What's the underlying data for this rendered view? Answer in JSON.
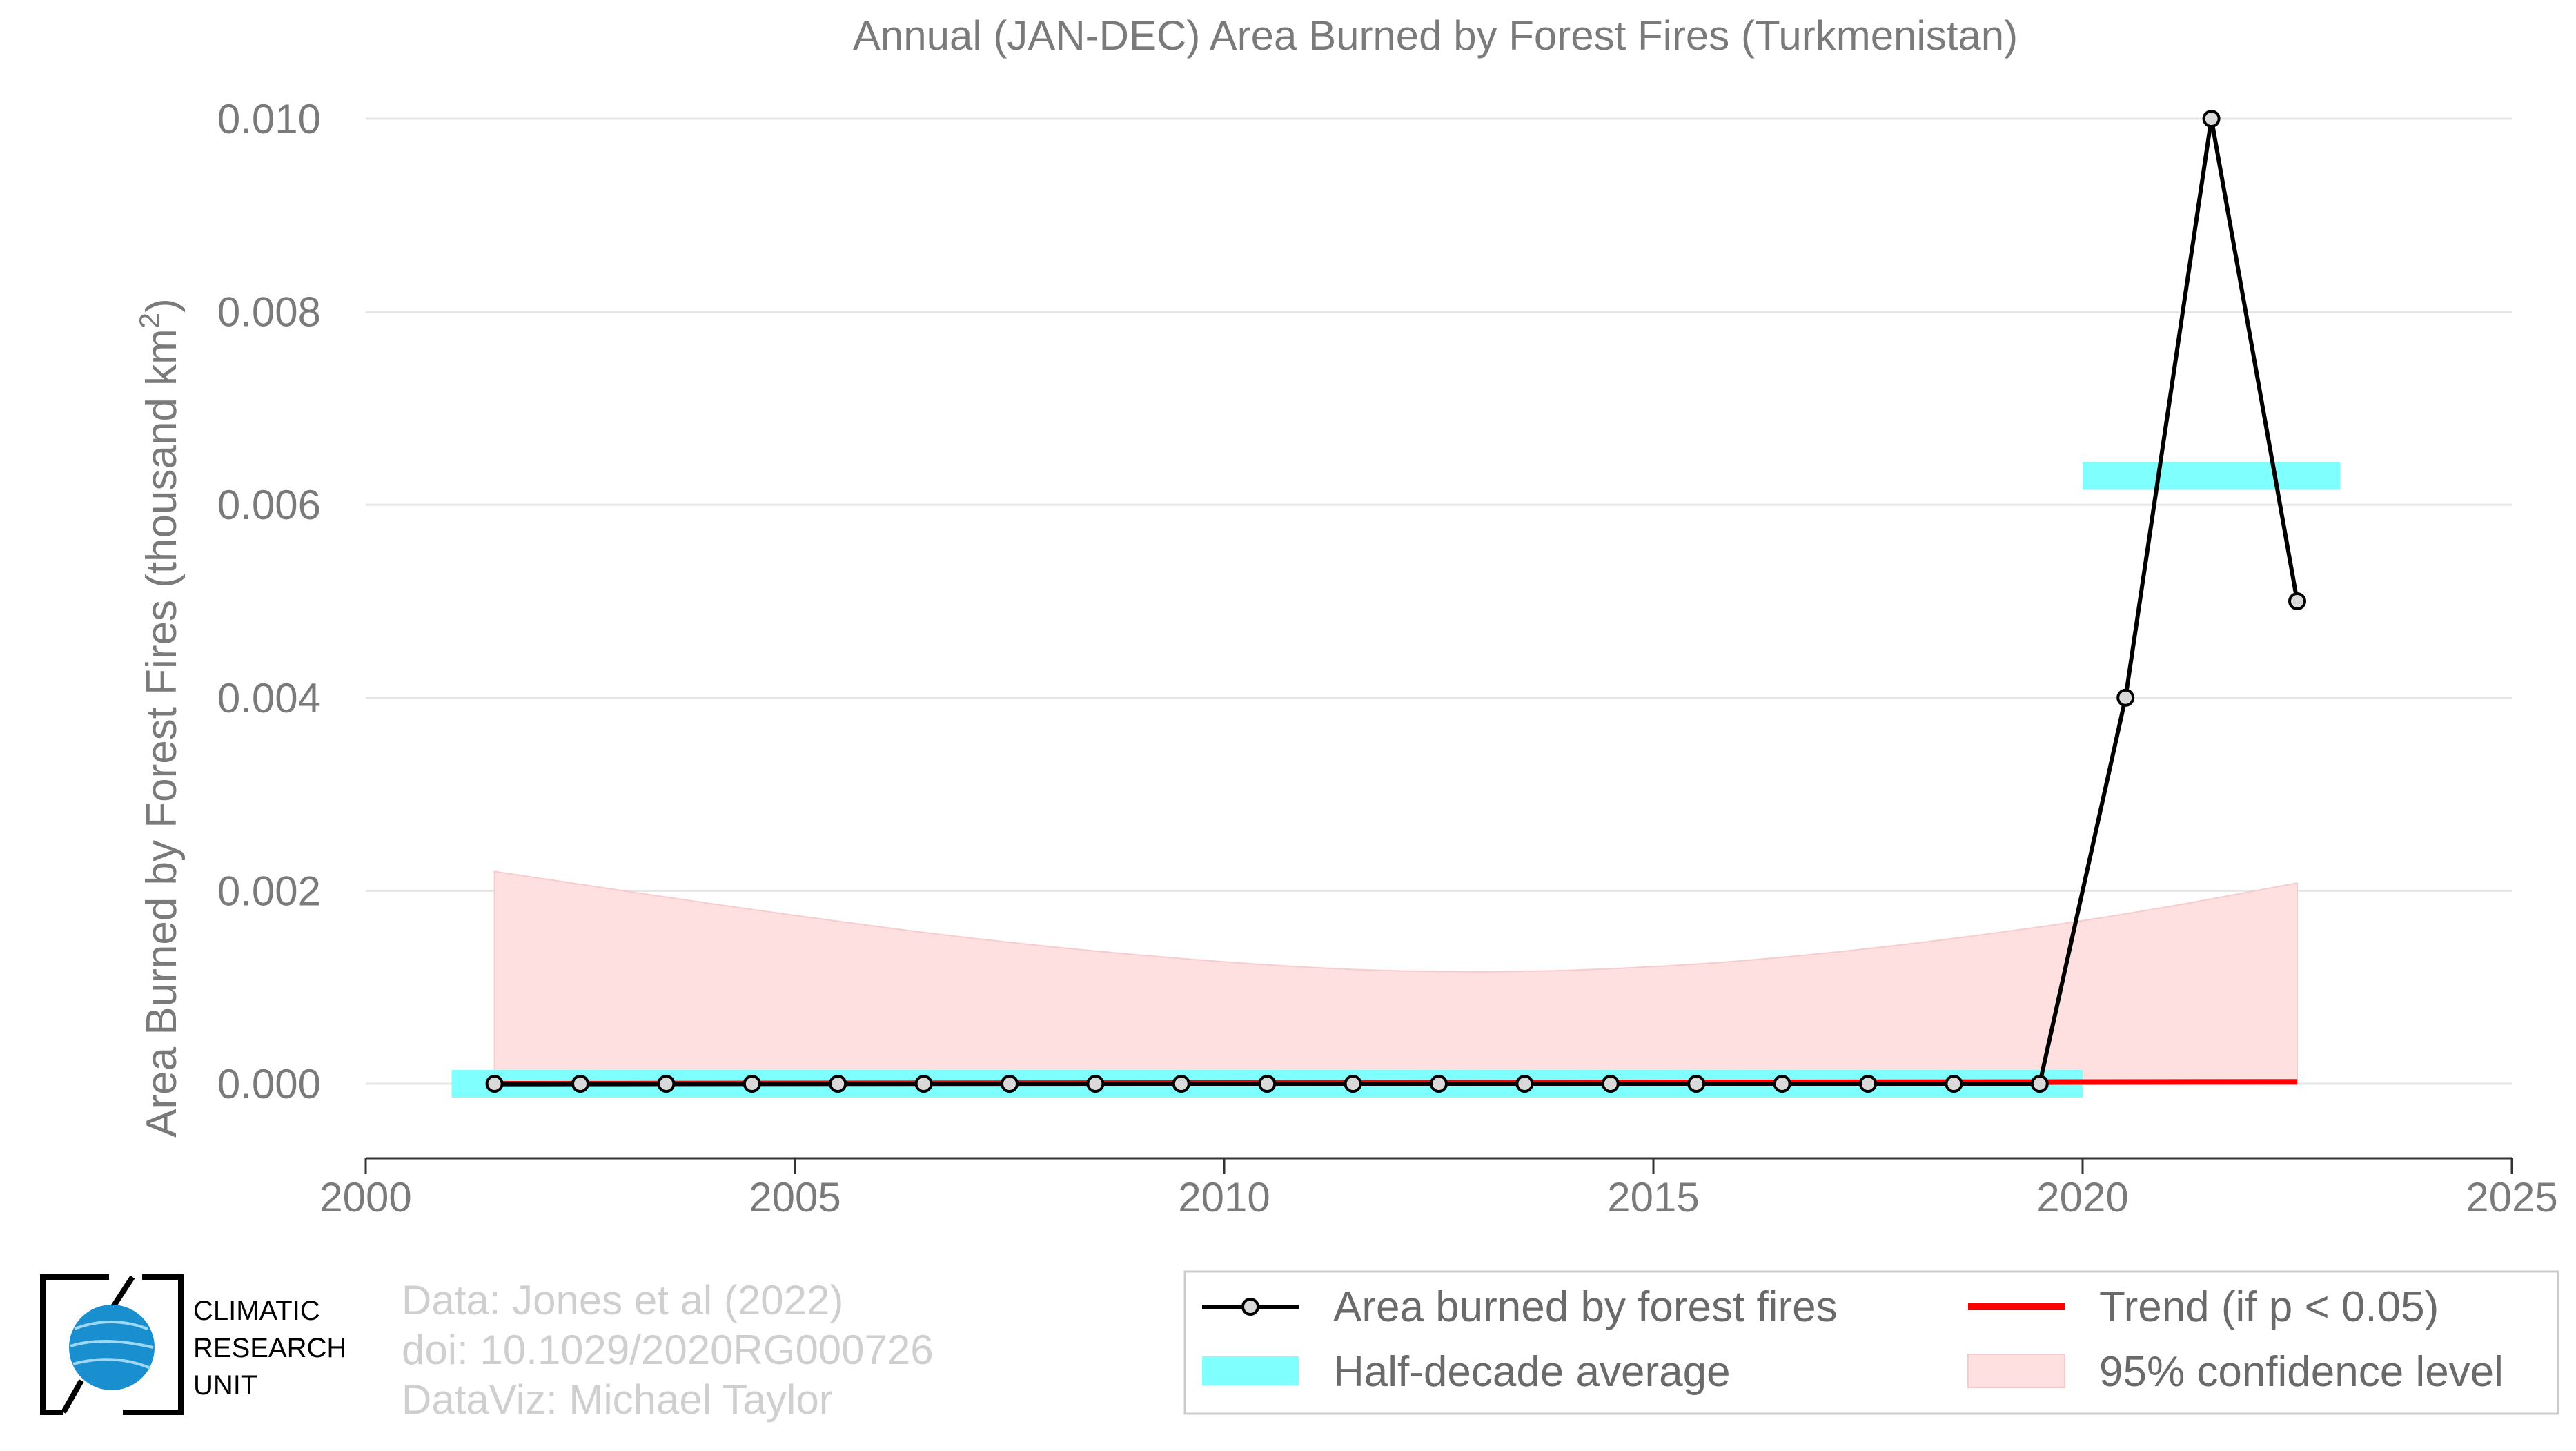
{
  "chart_data": {
    "type": "line",
    "title": "Annual (JAN-DEC) Area Burned by Forest Fires (Turkmenistan)",
    "ylabel": "Area Burned by Forest Fires (thousand km",
    "ylabel_superscript": "2",
    "ylabel_close": ")",
    "xlim": [
      2000,
      2025
    ],
    "ylim": [
      -0.0008,
      0.01
    ],
    "x_ticks": [
      2000,
      2005,
      2010,
      2015,
      2020,
      2025
    ],
    "x_tick_labels": [
      "2000",
      "2005",
      "2010",
      "2015",
      "2020",
      "2025"
    ],
    "y_ticks": [
      0.0,
      0.002,
      0.004,
      0.006,
      0.008,
      0.01
    ],
    "y_tick_labels": [
      "0.000",
      "0.002",
      "0.004",
      "0.006",
      "0.008",
      "0.010"
    ],
    "grid": "horizontal",
    "legend_position": "bottom-right",
    "series": [
      {
        "name": "Area burned by forest fires",
        "kind": "line-markers",
        "color": "#000000",
        "marker_fill": "#d9d9d9",
        "x": [
          2001.5,
          2002.5,
          2003.5,
          2004.5,
          2005.5,
          2006.5,
          2007.5,
          2008.5,
          2009.5,
          2010.5,
          2011.5,
          2012.5,
          2013.5,
          2014.5,
          2015.5,
          2016.5,
          2017.5,
          2018.5,
          2019.5,
          2020.5,
          2021.5,
          2022.5
        ],
        "y": [
          0,
          0,
          0,
          0,
          0,
          0,
          0,
          0,
          0,
          0,
          0,
          0,
          0,
          0,
          0,
          0,
          0,
          0,
          0,
          0.004,
          0.01,
          0.005
        ]
      },
      {
        "name": "Half-decade average",
        "kind": "step-bars",
        "color": "#80ffff",
        "segments": [
          {
            "x0": 2001,
            "x1": 2020,
            "y": 0.0
          },
          {
            "x0": 2020,
            "x1": 2023,
            "y": 0.0063
          }
        ]
      },
      {
        "name": "Trend (if p < 0.05)",
        "kind": "line",
        "color": "#ff0000",
        "x": [
          2001.5,
          2022.5
        ],
        "y": [
          0.0,
          2e-05
        ]
      },
      {
        "name": "95% confidence level",
        "kind": "band",
        "color": "#ffe0e0",
        "x": [
          2001.5,
          2004.5,
          2007.5,
          2010.5,
          2012.5,
          2014.5,
          2016.5,
          2018.5,
          2020.5,
          2022.5
        ],
        "upper": [
          0.0022,
          0.0018,
          0.00145,
          0.00122,
          0.00115,
          0.00118,
          0.0013,
          0.0015,
          0.00175,
          0.00208
        ],
        "lower": [
          0.0,
          0.0,
          0.0,
          0.0,
          0.0,
          0.0,
          0.0,
          0.0,
          0.0,
          0.0
        ]
      }
    ]
  },
  "legend": {
    "items": [
      {
        "label": "Area burned by forest fires"
      },
      {
        "label": "Trend (if p < 0.05)"
      },
      {
        "label": "Half-decade average"
      },
      {
        "label": "95% confidence level"
      }
    ]
  },
  "credits": {
    "line1": "Data: Jones et al (2022)",
    "line2": "doi: 10.1029/2020RG000726",
    "line3": "DataViz: Michael Taylor"
  },
  "logo": {
    "line1": "CLIMATIC",
    "line2": "RESEARCH",
    "line3": "UNIT"
  },
  "colors": {
    "axis_text": "#7a7a7a",
    "grid": "#e6e6e6",
    "half_decade": "#80ffff",
    "trend": "#ff0000",
    "confidence": "#ffe0e0",
    "logo_globe": "#1a8fd0"
  }
}
